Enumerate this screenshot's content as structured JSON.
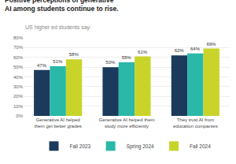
{
  "chart_data": {
    "type": "bar",
    "title": "Positive perceptions of generative AI among students continue to rise.",
    "subtitle": "US higher ed students say:",
    "categories": [
      "Generative AI helped\nthem get better grades",
      "Generative AI helped them\nstudy more efficiently",
      "They trust AI from\neducation companies"
    ],
    "series": [
      {
        "name": "Fall 2023",
        "color": "#1b3a5c",
        "values": [
          47,
          50,
          62
        ],
        "value_labels": [
          "47%",
          "50%",
          "62%"
        ]
      },
      {
        "name": "Spring 2024",
        "color": "#2ab8a8",
        "values": [
          51,
          55,
          64
        ],
        "value_labels": [
          "51%",
          "55%",
          "64%"
        ]
      },
      {
        "name": "Fall 2024",
        "color": "#c8d42a",
        "values": [
          58,
          61,
          69
        ],
        "value_labels": [
          "58%",
          "61%",
          "69%"
        ]
      }
    ],
    "ylim": [
      0,
      80
    ],
    "yticks": [
      {
        "value": 0,
        "label": "0%"
      },
      {
        "value": 10,
        "label": "10%"
      },
      {
        "value": 20,
        "label": "20%"
      },
      {
        "value": 30,
        "label": "30%"
      },
      {
        "value": 40,
        "label": "40%"
      },
      {
        "value": 50,
        "label": "50%"
      },
      {
        "value": 60,
        "label": "60%"
      },
      {
        "value": 70,
        "label": "70%"
      },
      {
        "value": 80,
        "label": "80%"
      }
    ],
    "grid": true,
    "legend": "bottom",
    "data_labels": true
  }
}
